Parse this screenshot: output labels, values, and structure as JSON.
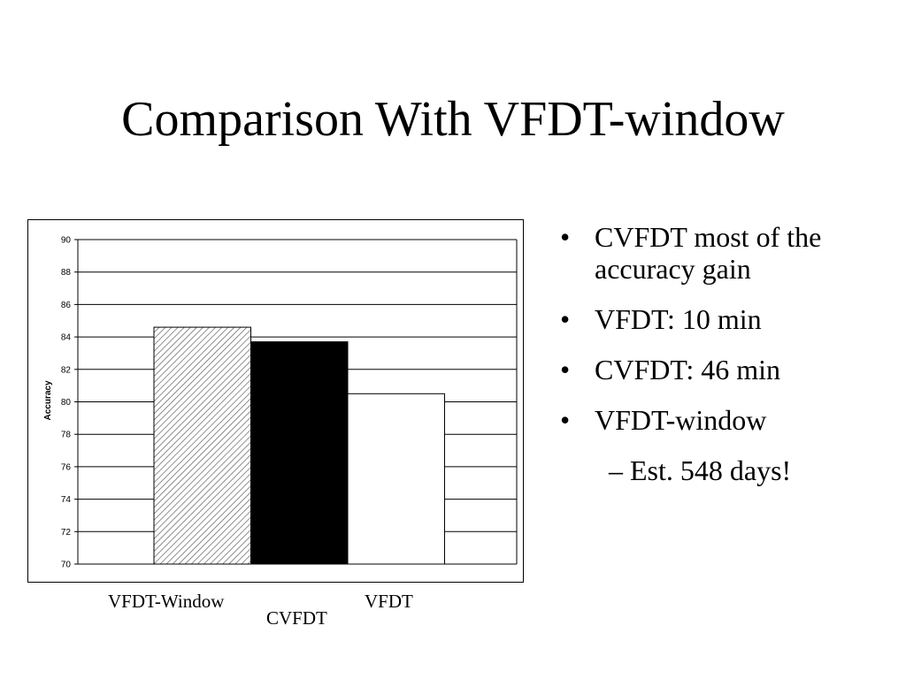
{
  "slide": {
    "title": "Comparison With VFDT-window",
    "bullets": [
      {
        "text": "CVFDT most of the accuracy gain"
      },
      {
        "text": "VFDT: 10 min"
      },
      {
        "text": "CVFDT: 46 min"
      },
      {
        "text": "VFDT-window"
      }
    ],
    "sub_bullet": "– Est. 548 days!",
    "bullet_glyph": "•"
  },
  "chart_data": {
    "type": "bar",
    "categories": [
      "VFDT-Window",
      "CVFDT",
      "VFDT"
    ],
    "values": [
      84.6,
      83.7,
      80.5
    ],
    "ylabel": "Accuracy",
    "xlabel": "",
    "ylim": [
      70,
      90
    ],
    "yticks": [
      "70",
      "72",
      "74",
      "76",
      "78",
      "80",
      "82",
      "84",
      "86",
      "88",
      "90"
    ],
    "grid": true,
    "legend": "none",
    "bar_fills": [
      "hatched",
      "#000000",
      "#ffffff"
    ]
  }
}
